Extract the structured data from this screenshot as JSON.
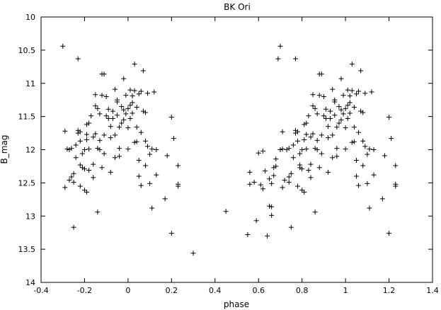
{
  "chart_data": {
    "type": "scatter",
    "title": "BK Ori",
    "xlabel": "phase",
    "ylabel": "B_mag",
    "xlim": [
      -0.4,
      1.4
    ],
    "ylim": [
      10,
      14
    ],
    "y_inverted": true,
    "grid": false,
    "marker": "plus",
    "xticks": [
      "-0.4",
      "-0.2",
      "0",
      "0.2",
      "0.4",
      "0.6",
      "0.8",
      "1",
      "1.2",
      "1.4"
    ],
    "yticks": [
      "10",
      "10.5",
      "11",
      "11.5",
      "12",
      "12.5",
      "13",
      "13.5",
      "14"
    ],
    "series": [
      {
        "points": [
          [
            -0.3,
            10.44
          ],
          [
            -0.29,
            11.72
          ],
          [
            -0.29,
            12.57
          ],
          [
            -0.28,
            11.99
          ],
          [
            -0.27,
            12.46
          ],
          [
            -0.27,
            12.0
          ],
          [
            -0.26,
            12.41
          ],
          [
            -0.26,
            11.98
          ],
          [
            -0.25,
            12.49
          ],
          [
            -0.25,
            12.36
          ],
          [
            -0.25,
            13.17
          ],
          [
            -0.24,
            11.93
          ],
          [
            -0.24,
            12.12
          ],
          [
            -0.23,
            11.75
          ],
          [
            -0.23,
            11.71
          ],
          [
            -0.23,
            10.63
          ],
          [
            -0.22,
            11.87
          ],
          [
            -0.22,
            11.73
          ],
          [
            -0.22,
            12.55
          ],
          [
            -0.22,
            12.23
          ],
          [
            -0.21,
            12.06
          ],
          [
            -0.21,
            12.27
          ],
          [
            -0.2,
            12.0
          ],
          [
            -0.2,
            12.29
          ],
          [
            -0.2,
            12.61
          ],
          [
            -0.19,
            12.64
          ],
          [
            -0.19,
            11.85
          ],
          [
            -0.19,
            11.62
          ],
          [
            -0.19,
            11.77
          ],
          [
            -0.18,
            11.99
          ],
          [
            -0.18,
            11.6
          ],
          [
            -0.18,
            12.31
          ],
          [
            -0.17,
            11.49
          ],
          [
            -0.16,
            12.22
          ],
          [
            -0.16,
            12.42
          ],
          [
            -0.16,
            11.81
          ],
          [
            -0.15,
            11.34
          ],
          [
            -0.15,
            11.17
          ],
          [
            -0.15,
            11.76
          ],
          [
            -0.14,
            12.94
          ],
          [
            -0.14,
            11.98
          ],
          [
            -0.14,
            11.38
          ],
          [
            -0.13,
            11.86
          ],
          [
            -0.13,
            11.46
          ],
          [
            -0.13,
            12.0
          ],
          [
            -0.12,
            12.27
          ],
          [
            -0.12,
            10.86
          ],
          [
            -0.12,
            11.18
          ],
          [
            -0.11,
            10.86
          ],
          [
            -0.11,
            11.78
          ],
          [
            -0.11,
            12.06
          ],
          [
            -0.1,
            11.49
          ],
          [
            -0.1,
            11.2
          ],
          [
            -0.09,
            11.53
          ],
          [
            -0.09,
            11.39
          ],
          [
            -0.08,
            11.65
          ],
          [
            -0.08,
            11.82
          ],
          [
            -0.08,
            12.34
          ],
          [
            -0.07,
            11.53
          ],
          [
            -0.07,
            11.42
          ],
          [
            -0.06,
            12.12
          ],
          [
            -0.06,
            11.78
          ],
          [
            -0.06,
            11.09
          ],
          [
            -0.05,
            11.25
          ],
          [
            -0.05,
            11.48
          ],
          [
            -0.05,
            11.28
          ],
          [
            -0.04,
            11.66
          ],
          [
            -0.04,
            11.98
          ],
          [
            -0.04,
            12.1
          ],
          [
            -0.03,
            11.6
          ],
          [
            -0.03,
            11.35
          ],
          [
            -0.02,
            11.4
          ],
          [
            -0.02,
            10.93
          ],
          [
            -0.02,
            11.55
          ],
          [
            -0.01,
            11.46
          ],
          [
            -0.01,
            11.18
          ],
          [
            0.0,
            11.38
          ],
          [
            0.0,
            11.67
          ],
          [
            0.0,
            11.99
          ],
          [
            0.01,
            11.33
          ],
          [
            0.01,
            11.53
          ],
          [
            0.01,
            11.1
          ],
          [
            0.02,
            11.29
          ],
          [
            0.02,
            11.45
          ],
          [
            0.02,
            11.19
          ],
          [
            0.03,
            11.11
          ],
          [
            0.03,
            11.89
          ],
          [
            0.03,
            10.71
          ],
          [
            0.04,
            11.36
          ],
          [
            0.04,
            11.88
          ],
          [
            0.04,
            11.66
          ],
          [
            0.05,
            12.16
          ],
          [
            0.05,
            11.16
          ],
          [
            0.05,
            12.4
          ],
          [
            0.06,
            11.12
          ],
          [
            0.06,
            11.74
          ],
          [
            0.06,
            12.54
          ],
          [
            0.07,
            10.81
          ],
          [
            0.07,
            11.42
          ],
          [
            0.08,
            11.44
          ],
          [
            0.08,
            11.87
          ],
          [
            0.08,
            12.24
          ],
          [
            0.09,
            11.15
          ],
          [
            0.09,
            11.95
          ],
          [
            0.1,
            12.51
          ],
          [
            0.1,
            12.07
          ],
          [
            0.11,
            12.88
          ],
          [
            0.11,
            11.99
          ],
          [
            0.12,
            11.13
          ],
          [
            0.13,
            12.0
          ],
          [
            0.13,
            12.38
          ],
          [
            0.17,
            12.74
          ],
          [
            0.18,
            12.09
          ],
          [
            0.2,
            11.51
          ],
          [
            0.2,
            13.26
          ],
          [
            0.21,
            11.83
          ],
          [
            0.23,
            12.55
          ],
          [
            0.23,
            12.24
          ],
          [
            0.23,
            12.52
          ],
          [
            0.3,
            13.56
          ],
          [
            0.45,
            12.93
          ],
          [
            0.55,
            13.28
          ],
          [
            0.56,
            12.52
          ],
          [
            0.56,
            12.34
          ],
          [
            0.58,
            12.49
          ],
          [
            0.59,
            13.07
          ],
          [
            0.6,
            12.05
          ],
          [
            0.61,
            12.53
          ],
          [
            0.62,
            12.59
          ],
          [
            0.62,
            12.02
          ],
          [
            0.63,
            12.32
          ],
          [
            0.64,
            13.3
          ],
          [
            0.65,
            12.44
          ],
          [
            0.65,
            12.85
          ],
          [
            0.66,
            12.51
          ],
          [
            0.66,
            12.99
          ],
          [
            0.66,
            12.86
          ],
          [
            0.67,
            12.39
          ],
          [
            0.67,
            12.27
          ],
          [
            0.68,
            12.25
          ],
          [
            0.68,
            12.14
          ],
          [
            0.69,
            10.63
          ],
          [
            0.7,
            12.0
          ],
          [
            0.7,
            10.44
          ],
          [
            0.71,
            11.73
          ],
          [
            0.71,
            12.57
          ],
          [
            0.71,
            11.99
          ],
          [
            0.72,
            12.46
          ],
          [
            0.73,
            12.0
          ],
          [
            0.74,
            12.41
          ],
          [
            0.74,
            11.98
          ],
          [
            0.74,
            12.49
          ],
          [
            0.75,
            12.36
          ],
          [
            0.75,
            13.17
          ],
          [
            0.76,
            11.93
          ],
          [
            0.76,
            12.12
          ],
          [
            0.77,
            11.75
          ],
          [
            0.77,
            11.71
          ],
          [
            0.77,
            10.63
          ],
          [
            0.78,
            11.87
          ],
          [
            0.78,
            11.73
          ],
          [
            0.78,
            12.55
          ],
          [
            0.79,
            12.23
          ],
          [
            0.79,
            12.06
          ],
          [
            0.79,
            12.27
          ],
          [
            0.8,
            12.0
          ],
          [
            0.8,
            12.29
          ],
          [
            0.8,
            12.61
          ],
          [
            0.81,
            12.64
          ],
          [
            0.81,
            11.85
          ],
          [
            0.81,
            11.62
          ],
          [
            0.82,
            11.77
          ],
          [
            0.82,
            11.99
          ],
          [
            0.82,
            11.6
          ],
          [
            0.83,
            12.31
          ],
          [
            0.83,
            11.49
          ],
          [
            0.84,
            12.22
          ],
          [
            0.84,
            12.42
          ],
          [
            0.84,
            11.81
          ],
          [
            0.85,
            11.34
          ],
          [
            0.85,
            11.17
          ],
          [
            0.85,
            11.76
          ],
          [
            0.86,
            12.94
          ],
          [
            0.86,
            11.98
          ],
          [
            0.86,
            11.38
          ],
          [
            0.87,
            11.86
          ],
          [
            0.87,
            11.46
          ],
          [
            0.87,
            12.0
          ],
          [
            0.88,
            12.27
          ],
          [
            0.88,
            10.86
          ],
          [
            0.88,
            11.18
          ],
          [
            0.89,
            10.86
          ],
          [
            0.89,
            11.78
          ],
          [
            0.89,
            12.06
          ],
          [
            0.9,
            11.49
          ],
          [
            0.9,
            11.2
          ],
          [
            0.91,
            11.53
          ],
          [
            0.91,
            11.39
          ],
          [
            0.92,
            11.65
          ],
          [
            0.92,
            11.82
          ],
          [
            0.92,
            12.34
          ],
          [
            0.93,
            11.53
          ],
          [
            0.93,
            11.42
          ],
          [
            0.94,
            12.12
          ],
          [
            0.94,
            11.78
          ],
          [
            0.94,
            11.09
          ],
          [
            0.95,
            11.25
          ],
          [
            0.95,
            11.48
          ],
          [
            0.95,
            11.28
          ],
          [
            0.96,
            11.66
          ],
          [
            0.96,
            11.98
          ],
          [
            0.96,
            12.1
          ],
          [
            0.97,
            11.6
          ],
          [
            0.97,
            11.35
          ],
          [
            0.98,
            11.4
          ],
          [
            0.98,
            10.93
          ],
          [
            0.98,
            11.55
          ],
          [
            0.99,
            11.46
          ],
          [
            0.99,
            11.18
          ],
          [
            1.0,
            11.38
          ],
          [
            1.0,
            11.67
          ],
          [
            1.0,
            11.99
          ],
          [
            1.01,
            11.33
          ],
          [
            1.01,
            11.53
          ],
          [
            1.01,
            11.1
          ],
          [
            1.02,
            11.29
          ],
          [
            1.02,
            11.45
          ],
          [
            1.02,
            11.19
          ],
          [
            1.03,
            11.11
          ],
          [
            1.03,
            11.89
          ],
          [
            1.03,
            10.71
          ],
          [
            1.04,
            11.36
          ],
          [
            1.04,
            11.88
          ],
          [
            1.04,
            11.66
          ],
          [
            1.05,
            12.16
          ],
          [
            1.05,
            11.16
          ],
          [
            1.05,
            12.4
          ],
          [
            1.06,
            11.12
          ],
          [
            1.06,
            11.74
          ],
          [
            1.06,
            12.54
          ],
          [
            1.07,
            10.81
          ],
          [
            1.07,
            11.42
          ],
          [
            1.08,
            11.44
          ],
          [
            1.08,
            11.87
          ],
          [
            1.08,
            12.24
          ],
          [
            1.09,
            11.15
          ],
          [
            1.09,
            11.95
          ],
          [
            1.1,
            12.51
          ],
          [
            1.1,
            12.07
          ],
          [
            1.11,
            12.88
          ],
          [
            1.11,
            11.99
          ],
          [
            1.12,
            11.13
          ],
          [
            1.13,
            12.0
          ],
          [
            1.13,
            12.38
          ],
          [
            1.17,
            12.74
          ],
          [
            1.18,
            12.09
          ],
          [
            1.2,
            11.51
          ],
          [
            1.2,
            13.26
          ],
          [
            1.21,
            11.83
          ],
          [
            1.23,
            12.55
          ],
          [
            1.23,
            12.24
          ],
          [
            1.23,
            12.52
          ]
        ]
      }
    ]
  }
}
